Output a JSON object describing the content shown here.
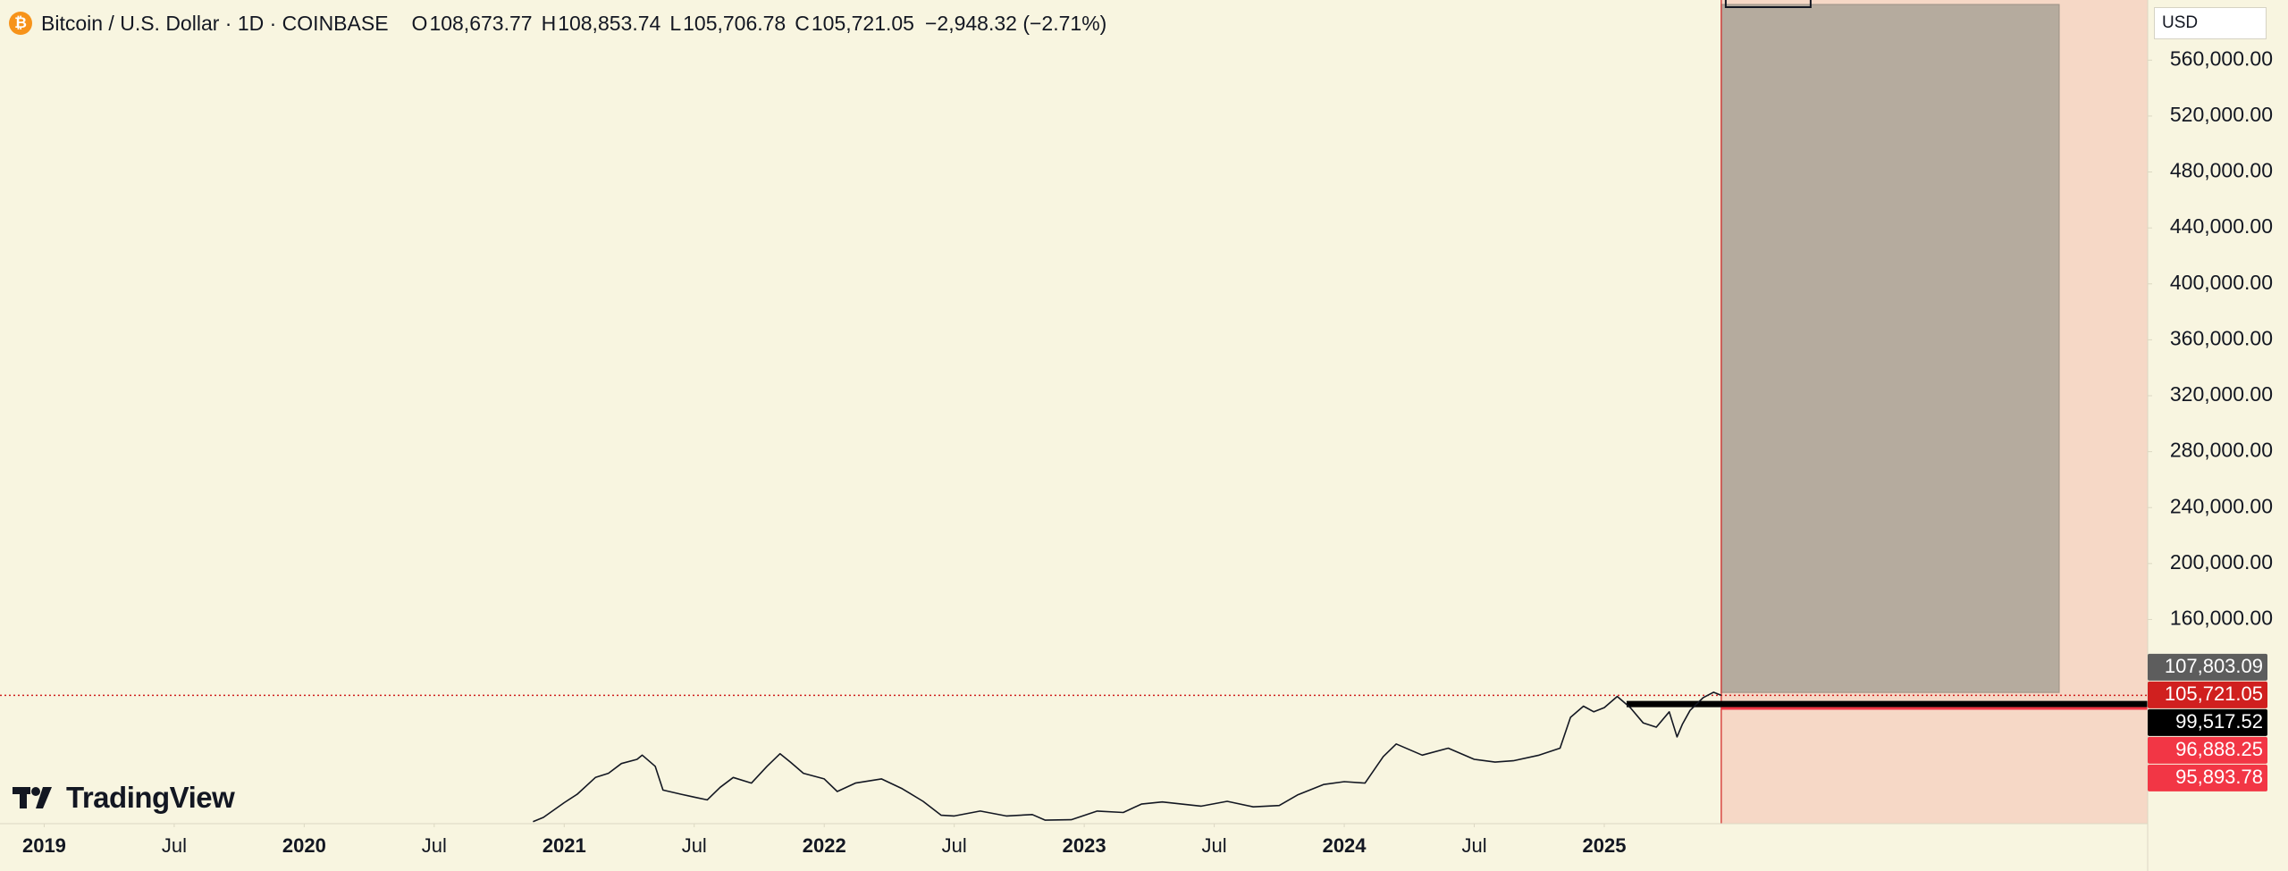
{
  "chart_data": {
    "type": "line",
    "title": "Bitcoin / U.S. Dollar · 1D · COINBASE",
    "ohlc": [
      {
        "key": "O",
        "text": "108,673.77"
      },
      {
        "key": "H",
        "text": "108,853.74"
      },
      {
        "key": "L",
        "text": "105,706.78"
      },
      {
        "key": "C",
        "text": "105,721.05"
      }
    ],
    "change": "−2,948.32 (−2.71%)",
    "currency": "USD",
    "brand": "TradingView",
    "color": "#131722",
    "x": [
      2020.88,
      2020.92,
      2021.0,
      2021.05,
      2021.12,
      2021.17,
      2021.22,
      2021.28,
      2021.3,
      2021.35,
      2021.38,
      2021.45,
      2021.5,
      2021.55,
      2021.6,
      2021.65,
      2021.72,
      2021.78,
      2021.83,
      2021.87,
      2021.92,
      2022.0,
      2022.05,
      2022.12,
      2022.22,
      2022.3,
      2022.38,
      2022.45,
      2022.5,
      2022.6,
      2022.7,
      2022.8,
      2022.85,
      2022.95,
      2023.05,
      2023.15,
      2023.22,
      2023.3,
      2023.45,
      2023.55,
      2023.65,
      2023.75,
      2023.82,
      2023.92,
      2024.0,
      2024.08,
      2024.15,
      2024.2,
      2024.3,
      2024.4,
      2024.5,
      2024.58,
      2024.65,
      2024.75,
      2024.83,
      2024.87,
      2024.92,
      2024.96,
      2025.0,
      2025.05,
      2025.1,
      2025.15,
      2025.2,
      2025.25,
      2025.28,
      2025.3,
      2025.33,
      2025.38,
      2025.42,
      2025.45
    ],
    "values": [
      15500,
      18500,
      29000,
      35000,
      47000,
      50000,
      57000,
      60000,
      63000,
      55000,
      38000,
      35000,
      33000,
      31000,
      40000,
      47000,
      43000,
      55000,
      64000,
      58000,
      50000,
      46000,
      37000,
      43000,
      46000,
      39000,
      30000,
      20000,
      19500,
      23000,
      19500,
      20500,
      16500,
      16800,
      23000,
      22000,
      28000,
      29500,
      26500,
      30000,
      26000,
      27000,
      34500,
      42000,
      44000,
      43000,
      62000,
      71000,
      63000,
      68000,
      60000,
      58000,
      59000,
      63000,
      68000,
      90000,
      98000,
      94000,
      97000,
      105000,
      97000,
      86000,
      83000,
      94000,
      76000,
      85000,
      95000,
      104000,
      108000,
      105721.05
    ],
    "xlim": [
      2018.83,
      2027.09
    ],
    "ylim": [
      14000,
      603000
    ],
    "xticks": [
      2019,
      {
        "value": 2019.5,
        "label": "Jul"
      },
      2020,
      {
        "value": 2020.5,
        "label": "Jul"
      },
      2021,
      {
        "value": 2021.5,
        "label": "Jul"
      },
      2022,
      {
        "value": 2022.5,
        "label": "Jul"
      },
      2023,
      {
        "value": 2023.5,
        "label": "Jul"
      },
      2024,
      {
        "value": 2024.5,
        "label": "Jul"
      },
      2025
    ],
    "yticks": [
      {
        "value": 160000,
        "label": "160,000.00"
      },
      {
        "value": 200000,
        "label": "200,000.00"
      },
      {
        "value": 240000,
        "label": "240,000.00"
      },
      {
        "value": 280000,
        "label": "280,000.00"
      },
      {
        "value": 320000,
        "label": "320,000.00"
      },
      {
        "value": 360000,
        "label": "360,000.00"
      },
      {
        "value": 400000,
        "label": "400,000.00"
      },
      {
        "value": 440000,
        "label": "440,000.00"
      },
      {
        "value": 480000,
        "label": "480,000.00"
      },
      {
        "value": 520000,
        "label": "520,000.00"
      },
      {
        "value": 560000,
        "label": "560,000.00"
      }
    ],
    "price_labels": [
      {
        "value": 107803.09,
        "label": "107,803.09",
        "color": "#5d5d5d"
      },
      {
        "value": 105721.05,
        "label": "105,721.05",
        "color": "#d0201f"
      },
      {
        "value": 99517.52,
        "label": "99,517.52",
        "color": "#000000"
      },
      {
        "value": 96888.25,
        "label": "96,888.25",
        "color": "#f23645"
      },
      {
        "value": 95893.78,
        "label": "95,893.78",
        "color": "#f23645"
      }
    ]
  }
}
